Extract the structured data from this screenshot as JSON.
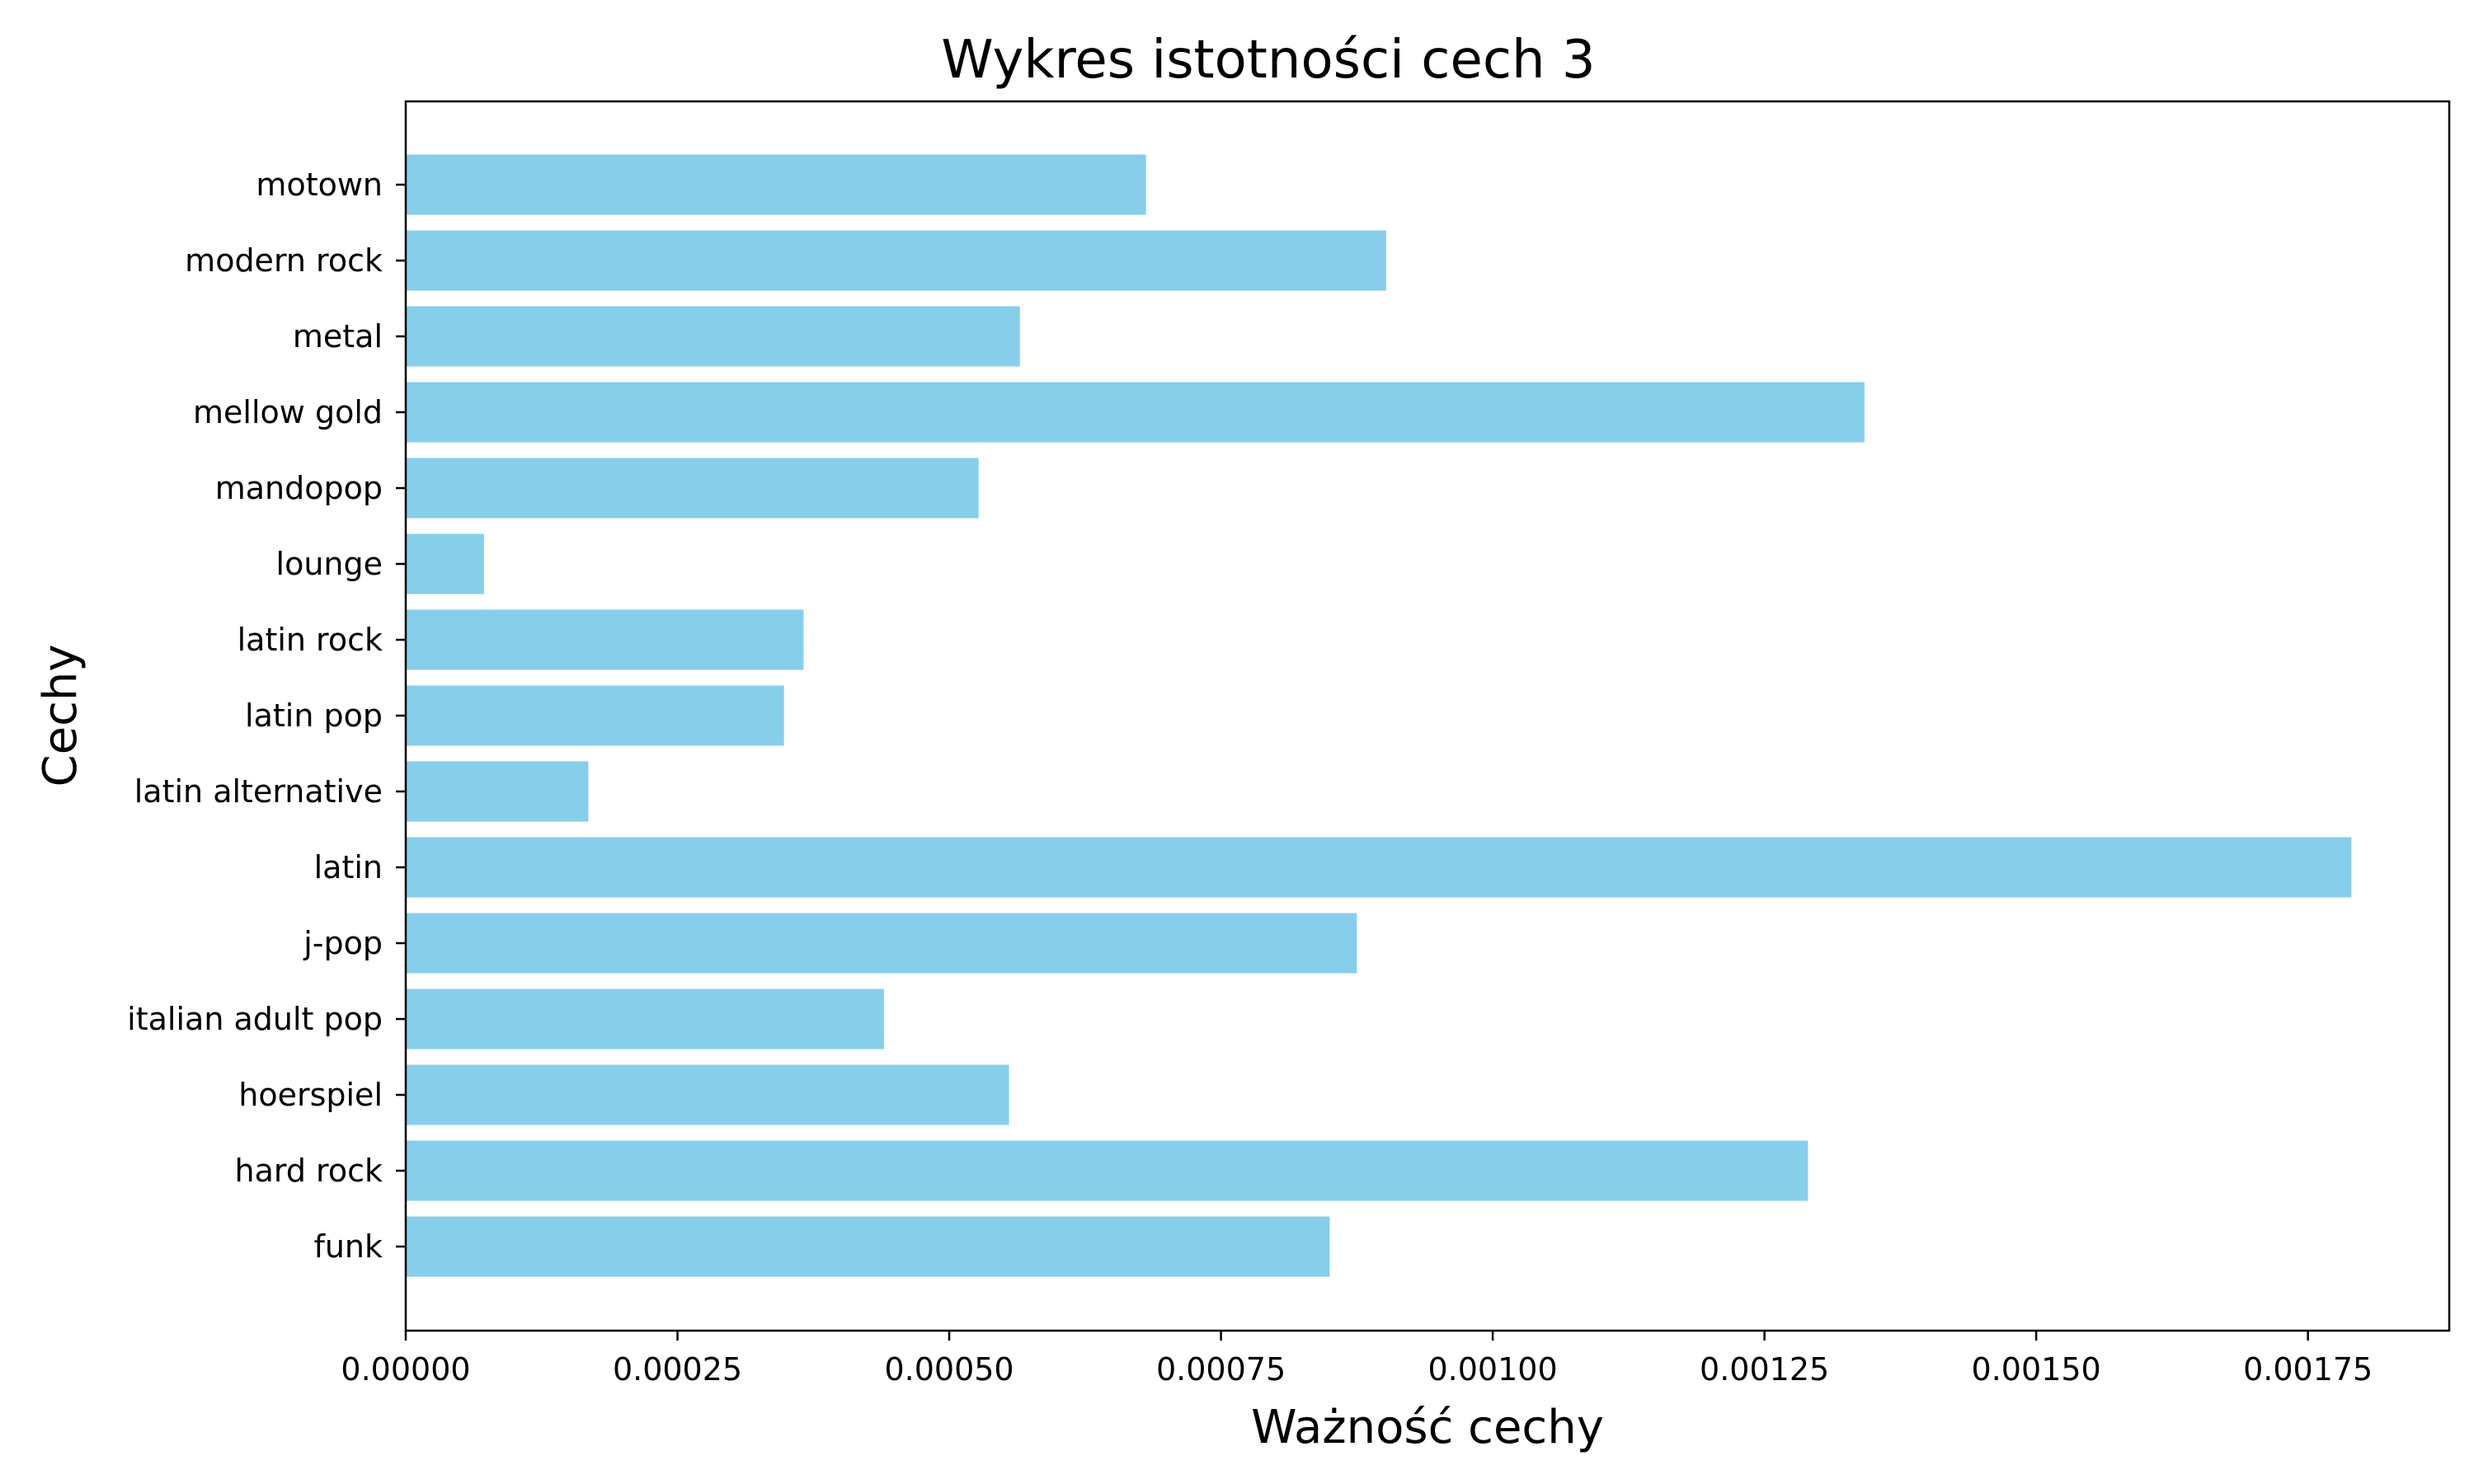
{
  "chart_data": {
    "type": "bar",
    "orientation": "horizontal",
    "title": "Wykres istotności cech 3",
    "xlabel": "Ważność cechy",
    "ylabel": "Cechy",
    "categories": [
      "funk",
      "hard rock",
      "hoerspiel",
      "italian adult pop",
      "j-pop",
      "latin",
      "latin alternative",
      "latin pop",
      "latin rock",
      "lounge",
      "mandopop",
      "mellow gold",
      "metal",
      "modern rock",
      "motown"
    ],
    "values": [
      0.00085,
      0.00129,
      0.000555,
      0.00044,
      0.000875,
      0.00179,
      0.000168,
      0.000348,
      0.000366,
      7.2e-05,
      0.000527,
      0.001342,
      0.000565,
      0.000902,
      0.000681
    ],
    "xlim": [
      0,
      0.00188
    ],
    "xticks": [
      "0.00000",
      "0.00025",
      "0.00050",
      "0.00075",
      "0.00100",
      "0.00125",
      "0.00150",
      "0.00175"
    ],
    "xtick_values": [
      0,
      0.00025,
      0.0005,
      0.00075,
      0.001,
      0.00125,
      0.0015,
      0.00175
    ],
    "grid": false,
    "bar_color": "#87CEEB"
  }
}
